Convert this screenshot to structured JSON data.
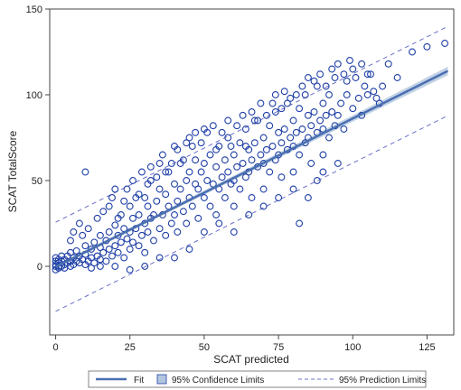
{
  "chart_data": {
    "type": "scatter",
    "title": "",
    "xlabel": "SCAT predicted",
    "ylabel": "SCAT TotalScore",
    "xlim": [
      -2,
      134
    ],
    "ylim": [
      -40,
      150
    ],
    "xticks": [
      0,
      25,
      50,
      75,
      100,
      125
    ],
    "yticks": [
      0,
      50,
      100,
      150
    ],
    "tick_labels_x": [
      "0",
      "25",
      "50",
      "75",
      "100",
      "125"
    ],
    "tick_labels_y": [
      "0",
      "50",
      "100",
      "150"
    ],
    "grid": false,
    "legend_position": "bottom",
    "colors": {
      "points": "#1f3fa6",
      "fit": "#4a6fb0",
      "confidence": "#b3c6e0",
      "prediction": "#6a70c8"
    },
    "fit_line": {
      "intercept": -0.3,
      "slope": 0.865
    },
    "confidence_band_halfwidth": {
      "start": 1.0,
      "end": 2.5
    },
    "prediction_offset": 26,
    "points": [
      [
        0,
        0
      ],
      [
        0,
        1
      ],
      [
        0,
        3
      ],
      [
        0,
        5
      ],
      [
        0,
        -2
      ],
      [
        1,
        0
      ],
      [
        1,
        2
      ],
      [
        1,
        4
      ],
      [
        1,
        -1
      ],
      [
        2,
        0
      ],
      [
        2,
        3
      ],
      [
        2,
        6
      ],
      [
        3,
        1
      ],
      [
        3,
        4
      ],
      [
        3,
        -1
      ],
      [
        4,
        2
      ],
      [
        4,
        6
      ],
      [
        5,
        0
      ],
      [
        5,
        3
      ],
      [
        5,
        8
      ],
      [
        6,
        1
      ],
      [
        6,
        5
      ],
      [
        7,
        3
      ],
      [
        7,
        9
      ],
      [
        8,
        2
      ],
      [
        8,
        6
      ],
      [
        9,
        4
      ],
      [
        10,
        1
      ],
      [
        10,
        7
      ],
      [
        10,
        12
      ],
      [
        10,
        55
      ],
      [
        11,
        3
      ],
      [
        12,
        5
      ],
      [
        12,
        10
      ],
      [
        13,
        2
      ],
      [
        13,
        14
      ],
      [
        14,
        6
      ],
      [
        15,
        4
      ],
      [
        15,
        11
      ],
      [
        15,
        18
      ],
      [
        16,
        8
      ],
      [
        17,
        3
      ],
      [
        17,
        15
      ],
      [
        18,
        10
      ],
      [
        18,
        20
      ],
      [
        19,
        6
      ],
      [
        20,
        12
      ],
      [
        20,
        24
      ],
      [
        20,
        45
      ],
      [
        21,
        8
      ],
      [
        21,
        18
      ],
      [
        22,
        14
      ],
      [
        22,
        30
      ],
      [
        23,
        5
      ],
      [
        23,
        22
      ],
      [
        24,
        16
      ],
      [
        25,
        10
      ],
      [
        25,
        20
      ],
      [
        25,
        35
      ],
      [
        26,
        14
      ],
      [
        26,
        28
      ],
      [
        27,
        22
      ],
      [
        27,
        40
      ],
      [
        28,
        12
      ],
      [
        28,
        30
      ],
      [
        29,
        18
      ],
      [
        30,
        25
      ],
      [
        30,
        40
      ],
      [
        30,
        8
      ],
      [
        31,
        20
      ],
      [
        31,
        35
      ],
      [
        32,
        28
      ],
      [
        32,
        50
      ],
      [
        33,
        15
      ],
      [
        33,
        30
      ],
      [
        34,
        38
      ],
      [
        35,
        22
      ],
      [
        35,
        45
      ],
      [
        35,
        60
      ],
      [
        36,
        30
      ],
      [
        37,
        18
      ],
      [
        37,
        42
      ],
      [
        38,
        35
      ],
      [
        38,
        55
      ],
      [
        39,
        25
      ],
      [
        40,
        30
      ],
      [
        40,
        48
      ],
      [
        40,
        70
      ],
      [
        41,
        20
      ],
      [
        41,
        38
      ],
      [
        42,
        45
      ],
      [
        42,
        60
      ],
      [
        43,
        32
      ],
      [
        44,
        50
      ],
      [
        44,
        25
      ],
      [
        45,
        40
      ],
      [
        45,
        55
      ],
      [
        45,
        75
      ],
      [
        46,
        35
      ],
      [
        47,
        48
      ],
      [
        47,
        62
      ],
      [
        48,
        28
      ],
      [
        48,
        45
      ],
      [
        49,
        55
      ],
      [
        50,
        40
      ],
      [
        50,
        60
      ],
      [
        50,
        20
      ],
      [
        51,
        50
      ],
      [
        52,
        35
      ],
      [
        52,
        65
      ],
      [
        53,
        48
      ],
      [
        54,
        58
      ],
      [
        54,
        30
      ],
      [
        55,
        45
      ],
      [
        55,
        70
      ],
      [
        56,
        52
      ],
      [
        57,
        40
      ],
      [
        57,
        62
      ],
      [
        58,
        55
      ],
      [
        58,
        75
      ],
      [
        59,
        48
      ],
      [
        60,
        50
      ],
      [
        60,
        65
      ],
      [
        60,
        35
      ],
      [
        61,
        58
      ],
      [
        62,
        45
      ],
      [
        62,
        72
      ],
      [
        63,
        60
      ],
      [
        64,
        52
      ],
      [
        64,
        80
      ],
      [
        65,
        55
      ],
      [
        65,
        68
      ],
      [
        66,
        40
      ],
      [
        66,
        62
      ],
      [
        67,
        72
      ],
      [
        68,
        58
      ],
      [
        68,
        85
      ],
      [
        69,
        65
      ],
      [
        70,
        60
      ],
      [
        70,
        75
      ],
      [
        70,
        45
      ],
      [
        71,
        68
      ],
      [
        72,
        55
      ],
      [
        72,
        82
      ],
      [
        73,
        70
      ],
      [
        74,
        62
      ],
      [
        74,
        90
      ],
      [
        75,
        65
      ],
      [
        75,
        78
      ],
      [
        76,
        52
      ],
      [
        76,
        72
      ],
      [
        77,
        80
      ],
      [
        78,
        68
      ],
      [
        78,
        95
      ],
      [
        79,
        75
      ],
      [
        80,
        70
      ],
      [
        80,
        85
      ],
      [
        80,
        55
      ],
      [
        81,
        78
      ],
      [
        82,
        65
      ],
      [
        82,
        92
      ],
      [
        83,
        80
      ],
      [
        84,
        72
      ],
      [
        84,
        100
      ],
      [
        85,
        75
      ],
      [
        85,
        88
      ],
      [
        86,
        60
      ],
      [
        86,
        82
      ],
      [
        87,
        90
      ],
      [
        88,
        78
      ],
      [
        88,
        105
      ],
      [
        89,
        85
      ],
      [
        90,
        80
      ],
      [
        90,
        95
      ],
      [
        90,
        65
      ],
      [
        91,
        88
      ],
      [
        92,
        75
      ],
      [
        92,
        100
      ],
      [
        93,
        90
      ],
      [
        94,
        82
      ],
      [
        94,
        110
      ],
      [
        95,
        88
      ],
      [
        96,
        95
      ],
      [
        97,
        80
      ],
      [
        98,
        100
      ],
      [
        98,
        108
      ],
      [
        100,
        92
      ],
      [
        100,
        115
      ],
      [
        102,
        98
      ],
      [
        103,
        88
      ],
      [
        104,
        105
      ],
      [
        105,
        100
      ],
      [
        106,
        112
      ],
      [
        108,
        98
      ],
      [
        110,
        105
      ],
      [
        112,
        118
      ],
      [
        115,
        110
      ],
      [
        120,
        125
      ],
      [
        125,
        128
      ],
      [
        131,
        130
      ],
      [
        50,
        80
      ],
      [
        55,
        25
      ],
      [
        60,
        20
      ],
      [
        65,
        30
      ],
      [
        70,
        35
      ],
      [
        75,
        40
      ],
      [
        80,
        45
      ],
      [
        82,
        25
      ],
      [
        85,
        40
      ],
      [
        88,
        50
      ],
      [
        90,
        55
      ],
      [
        95,
        60
      ],
      [
        40,
        5
      ],
      [
        45,
        10
      ],
      [
        35,
        5
      ],
      [
        30,
        0
      ],
      [
        25,
        -2
      ],
      [
        20,
        0
      ],
      [
        15,
        0
      ],
      [
        12,
        -1
      ],
      [
        5,
        15
      ],
      [
        6,
        20
      ],
      [
        8,
        25
      ],
      [
        9,
        18
      ],
      [
        11,
        22
      ],
      [
        14,
        28
      ],
      [
        16,
        32
      ],
      [
        18,
        35
      ],
      [
        19,
        40
      ],
      [
        21,
        28
      ],
      [
        23,
        38
      ],
      [
        24,
        45
      ],
      [
        26,
        50
      ],
      [
        28,
        42
      ],
      [
        29,
        55
      ],
      [
        31,
        48
      ],
      [
        32,
        58
      ],
      [
        34,
        52
      ],
      [
        36,
        65
      ],
      [
        37,
        55
      ],
      [
        39,
        60
      ],
      [
        41,
        68
      ],
      [
        43,
        62
      ],
      [
        44,
        72
      ],
      [
        46,
        70
      ],
      [
        47,
        78
      ],
      [
        49,
        72
      ],
      [
        51,
        78
      ],
      [
        53,
        82
      ],
      [
        54,
        68
      ],
      [
        56,
        78
      ],
      [
        58,
        85
      ],
      [
        59,
        70
      ],
      [
        61,
        82
      ],
      [
        63,
        88
      ],
      [
        64,
        70
      ],
      [
        66,
        90
      ],
      [
        67,
        85
      ],
      [
        69,
        95
      ],
      [
        71,
        88
      ],
      [
        73,
        95
      ],
      [
        74,
        100
      ],
      [
        76,
        92
      ],
      [
        77,
        102
      ],
      [
        79,
        98
      ],
      [
        81,
        100
      ],
      [
        83,
        105
      ],
      [
        85,
        110
      ],
      [
        87,
        108
      ],
      [
        89,
        112
      ],
      [
        91,
        105
      ],
      [
        93,
        115
      ],
      [
        95,
        118
      ],
      [
        97,
        112
      ],
      [
        99,
        120
      ],
      [
        101,
        110
      ],
      [
        103,
        118
      ],
      [
        105,
        112
      ],
      [
        107,
        102
      ],
      [
        109,
        95
      ]
    ]
  },
  "legend": {
    "fit_label": "Fit",
    "confidence_label": "95% Confidence Limits",
    "prediction_label": "95% Prediction Limits"
  }
}
